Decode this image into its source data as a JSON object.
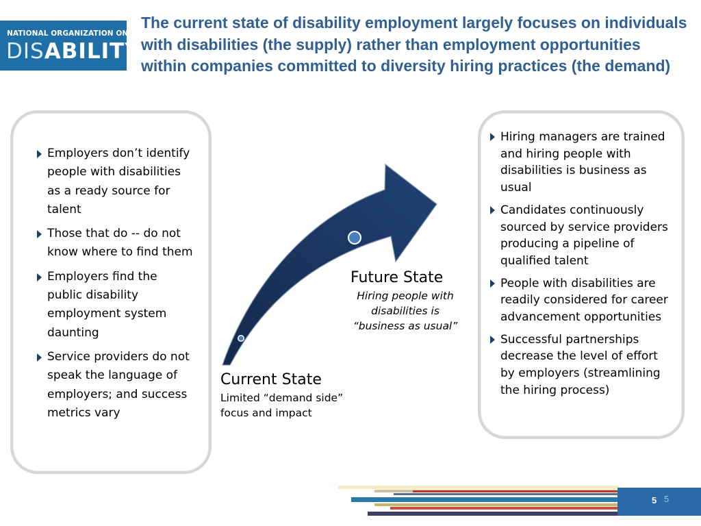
{
  "logo": {
    "line1": "NATIONAL ORGANIZATION ON",
    "line2_light": "DIS",
    "line2_bold": "ABILITY"
  },
  "title": "The current state of disability employment largely focuses on individuals with disabilities (the supply) rather than employment opportunities within companies committed to diversity hiring practices (the demand)",
  "left_panel": {
    "items": [
      "Employers don’t identify people with disabilities as a ready source for talent",
      "Those that do -- do not know where to find them",
      "Employers find the public disability employment system daunting",
      "Service providers do not speak the language of employers; and success metrics vary"
    ]
  },
  "right_panel": {
    "items": [
      "Hiring managers are trained and hiring people with disabilities is business as usual",
      "Candidates continuously sourced by service providers producing a pipeline of qualified talent",
      "People with disabilities are readily considered for career advancement opportunities",
      "Successful partnerships decrease the level of effort by employers (streamlining the hiring process)"
    ]
  },
  "diagram": {
    "future_title": "Future State",
    "future_desc": "Hiring people with disabilities is “business as usual”",
    "current_title": "Current State",
    "current_desc": "Limited “demand side” focus and impact",
    "arrow_color": "#1a3560",
    "marker_color": "#4a7fc0"
  },
  "footer": {
    "page_bold": "5",
    "page_light": "5",
    "accent_color": "#2a6aa8"
  }
}
